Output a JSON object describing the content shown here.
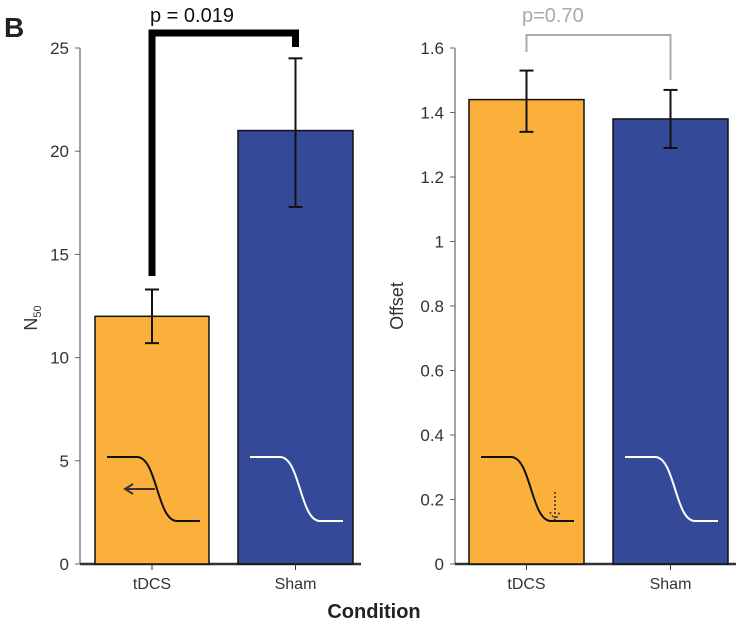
{
  "panel_label": "B",
  "xlabel": "Condition",
  "colors": {
    "tDCS": "#FBB03B",
    "Sham": "#344A98"
  },
  "chart_data": [
    {
      "type": "bar",
      "categories": [
        "tDCS",
        "Sham"
      ],
      "values": [
        12.0,
        21.0
      ],
      "error_low": [
        10.7,
        17.3
      ],
      "error_high": [
        13.3,
        24.5
      ],
      "ylabel": "N",
      "ylabel_sub": "50",
      "ylim": [
        0,
        25
      ],
      "yticks": [
        "0",
        "5",
        "10",
        "15",
        "20",
        "25"
      ],
      "annotation": "p = 0.019",
      "grid": false
    },
    {
      "type": "bar",
      "categories": [
        "tDCS",
        "Sham"
      ],
      "values": [
        1.44,
        1.38
      ],
      "error_low": [
        1.34,
        1.29
      ],
      "error_high": [
        1.53,
        1.47
      ],
      "ylabel": "Offset",
      "ylim": [
        0,
        1.6
      ],
      "yticks": [
        "0",
        "0.2",
        "0.4",
        "0.6",
        "0.8",
        "1",
        "1.2",
        "1.4",
        "1.6"
      ],
      "annotation": "p=0.70",
      "grid": false
    }
  ]
}
